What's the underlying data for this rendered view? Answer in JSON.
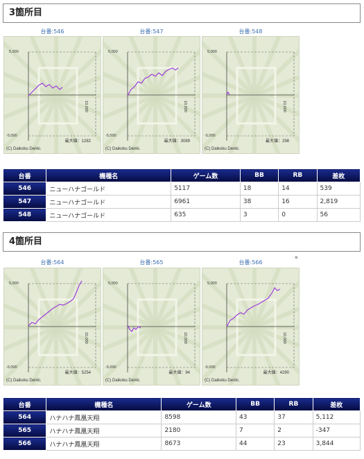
{
  "sections": [
    {
      "title": "3箇所目",
      "graphs": [
        {
          "title": "台番:546",
          "y_top": "5,000",
          "y_bottom": "-5,000",
          "x_label": "10,000",
          "max_label": "最大値：1282",
          "copyright": "(C) Daikoku Denki."
        },
        {
          "title": "台番:547",
          "y_top": "5,000",
          "y_bottom": "-5,000",
          "x_label": "10,000",
          "max_label": "最大値：3089",
          "copyright": "(C) Daikoku Denki."
        },
        {
          "title": "台番:548",
          "y_top": "5,000",
          "y_bottom": "-5,000",
          "x_label": "10,000",
          "max_label": "最大値：298",
          "copyright": "(C) Daikoku Denki."
        }
      ],
      "table": {
        "headers": [
          "台番",
          "機種名",
          "ゲーム数",
          "BB",
          "RB",
          "差枚"
        ],
        "rows": [
          [
            "546",
            "ニューハナゴールド",
            "5117",
            "18",
            "14",
            "539"
          ],
          [
            "547",
            "ニューハナゴールド",
            "6961",
            "38",
            "16",
            "2,819"
          ],
          [
            "548",
            "ニューハナゴールド",
            "635",
            "3",
            "0",
            "56"
          ]
        ]
      }
    },
    {
      "title": "4箇所目",
      "graphs": [
        {
          "title": "台番:564",
          "y_top": "5,000",
          "y_bottom": "-5,000",
          "x_label": "10,000",
          "max_label": "最大値：5254",
          "copyright": "(C) Daikoku Denki."
        },
        {
          "title": "台番:565",
          "y_top": "5,000",
          "y_bottom": "-5,000",
          "x_label": "10,000",
          "max_label": "最大値：94",
          "copyright": "(C) Daikoku Denki."
        },
        {
          "title": "台番:566",
          "y_top": "5,000",
          "y_bottom": "-5,000",
          "x_label": "10,000",
          "max_label": "最大値：4290",
          "copyright": "(C) Daikoku Denki."
        }
      ],
      "table": {
        "headers": [
          "台番",
          "機種名",
          "ゲーム数",
          "BB",
          "RB",
          "差枚"
        ],
        "rows": [
          [
            "564",
            "ハナハナ鳳凰天翔",
            "8598",
            "43",
            "37",
            "5,112"
          ],
          [
            "565",
            "ハナハナ鳳凰天翔",
            "2180",
            "7",
            "2",
            "-347"
          ],
          [
            "566",
            "ハナハナ鳳凰天翔",
            "8673",
            "44",
            "23",
            "3,844"
          ]
        ]
      }
    }
  ],
  "colors": {
    "line": "#9b3ddb",
    "header_bg": "#0d1a6b",
    "negative": "#d9342b"
  }
}
